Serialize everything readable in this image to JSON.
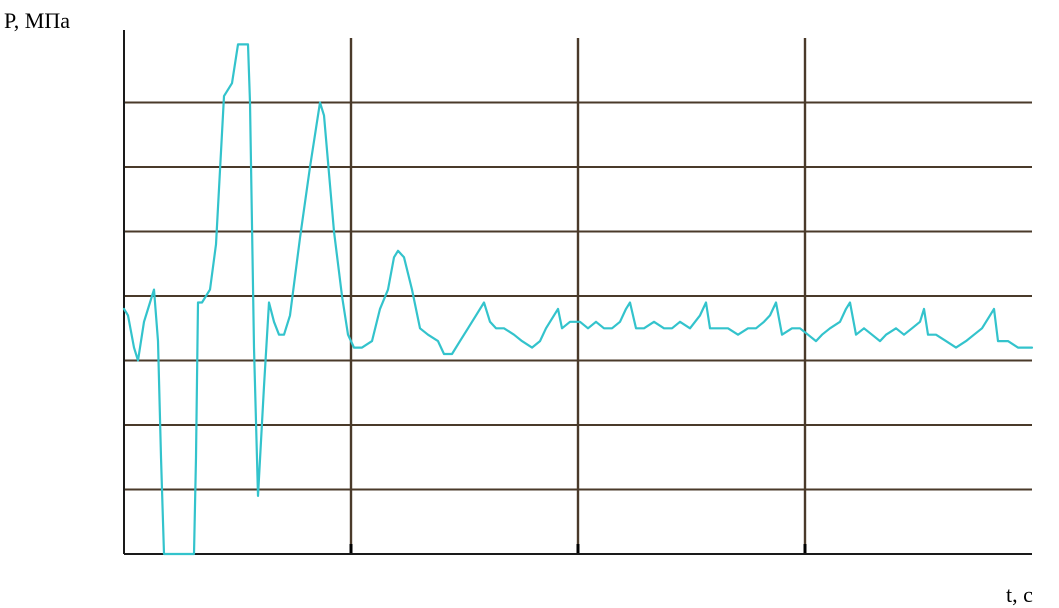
{
  "chart_data": {
    "type": "line",
    "title": "",
    "xlabel": "t, с",
    "ylabel": "P, МПа",
    "xlim": [
      0,
      908
    ],
    "ylim": [
      0,
      8
    ],
    "grid": true,
    "colors": {
      "line": "#33c3cc",
      "grid": "#4a3a2a",
      "axis": "#1a1a1a"
    },
    "series": [
      {
        "values": [
          [
            0,
            3.8
          ],
          [
            4,
            3.7
          ],
          [
            10,
            3.2
          ],
          [
            14,
            3.0
          ],
          [
            20,
            3.6
          ],
          [
            26,
            3.9
          ],
          [
            30,
            4.1
          ],
          [
            34,
            3.3
          ],
          [
            37,
            1.5
          ],
          [
            40,
            0.0
          ],
          [
            70,
            0.0
          ],
          [
            72,
            1.5
          ],
          [
            74,
            3.9
          ],
          [
            78,
            3.9
          ],
          [
            86,
            4.1
          ],
          [
            92,
            4.8
          ],
          [
            100,
            7.1
          ],
          [
            108,
            7.3
          ],
          [
            114,
            7.9
          ],
          [
            124,
            7.9
          ],
          [
            126,
            7.0
          ],
          [
            130,
            3.2
          ],
          [
            134,
            0.9
          ],
          [
            140,
            2.6
          ],
          [
            145,
            3.9
          ],
          [
            150,
            3.6
          ],
          [
            155,
            3.4
          ],
          [
            160,
            3.4
          ],
          [
            166,
            3.7
          ],
          [
            176,
            4.9
          ],
          [
            186,
            6.0
          ],
          [
            196,
            7.0
          ],
          [
            200,
            6.8
          ],
          [
            210,
            5.0
          ],
          [
            218,
            4.0
          ],
          [
            224,
            3.4
          ],
          [
            230,
            3.2
          ],
          [
            238,
            3.2
          ],
          [
            248,
            3.3
          ],
          [
            256,
            3.8
          ],
          [
            264,
            4.1
          ],
          [
            270,
            4.6
          ],
          [
            274,
            4.7
          ],
          [
            280,
            4.6
          ],
          [
            288,
            4.1
          ],
          [
            296,
            3.5
          ],
          [
            304,
            3.4
          ],
          [
            314,
            3.3
          ],
          [
            320,
            3.1
          ],
          [
            328,
            3.1
          ],
          [
            336,
            3.3
          ],
          [
            344,
            3.5
          ],
          [
            352,
            3.7
          ],
          [
            360,
            3.9
          ],
          [
            366,
            3.6
          ],
          [
            372,
            3.5
          ],
          [
            380,
            3.5
          ],
          [
            390,
            3.4
          ],
          [
            398,
            3.3
          ],
          [
            408,
            3.2
          ],
          [
            416,
            3.3
          ],
          [
            422,
            3.5
          ],
          [
            434,
            3.8
          ],
          [
            438,
            3.5
          ],
          [
            446,
            3.6
          ],
          [
            456,
            3.6
          ],
          [
            464,
            3.5
          ],
          [
            472,
            3.6
          ],
          [
            480,
            3.5
          ],
          [
            488,
            3.5
          ],
          [
            496,
            3.6
          ],
          [
            502,
            3.8
          ],
          [
            506,
            3.9
          ],
          [
            512,
            3.5
          ],
          [
            520,
            3.5
          ],
          [
            530,
            3.6
          ],
          [
            540,
            3.5
          ],
          [
            548,
            3.5
          ],
          [
            556,
            3.6
          ],
          [
            566,
            3.5
          ],
          [
            576,
            3.7
          ],
          [
            582,
            3.9
          ],
          [
            586,
            3.5
          ],
          [
            596,
            3.5
          ],
          [
            604,
            3.5
          ],
          [
            614,
            3.4
          ],
          [
            624,
            3.5
          ],
          [
            632,
            3.5
          ],
          [
            640,
            3.6
          ],
          [
            646,
            3.7
          ],
          [
            652,
            3.9
          ],
          [
            658,
            3.4
          ],
          [
            668,
            3.5
          ],
          [
            676,
            3.5
          ],
          [
            684,
            3.4
          ],
          [
            692,
            3.3
          ],
          [
            698,
            3.4
          ],
          [
            706,
            3.5
          ],
          [
            716,
            3.6
          ],
          [
            722,
            3.8
          ],
          [
            726,
            3.9
          ],
          [
            732,
            3.4
          ],
          [
            740,
            3.5
          ],
          [
            748,
            3.4
          ],
          [
            756,
            3.3
          ],
          [
            762,
            3.4
          ],
          [
            772,
            3.5
          ],
          [
            780,
            3.4
          ],
          [
            788,
            3.5
          ],
          [
            796,
            3.6
          ],
          [
            800,
            3.8
          ],
          [
            804,
            3.4
          ],
          [
            812,
            3.4
          ],
          [
            822,
            3.3
          ],
          [
            832,
            3.2
          ],
          [
            842,
            3.3
          ],
          [
            850,
            3.4
          ],
          [
            858,
            3.5
          ],
          [
            866,
            3.7
          ],
          [
            870,
            3.8
          ],
          [
            874,
            3.3
          ],
          [
            884,
            3.3
          ],
          [
            894,
            3.2
          ],
          [
            904,
            3.2
          ],
          [
            908,
            3.2
          ]
        ]
      }
    ]
  }
}
